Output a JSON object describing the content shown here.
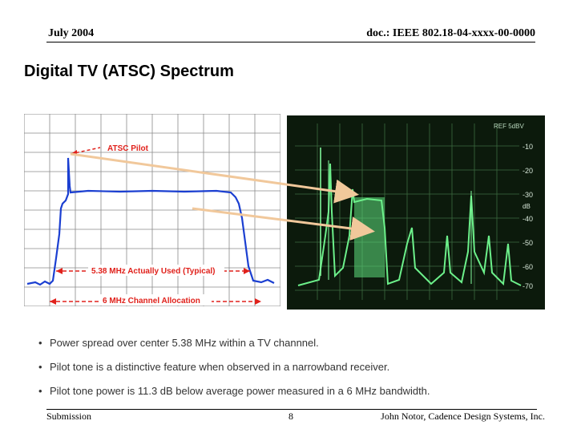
{
  "header": {
    "date": "July 2004",
    "doc_id": "doc.: IEEE 802.18-04-xxxx-00-0000"
  },
  "slide": {
    "title": "Digital TV (ATSC) Spectrum"
  },
  "figure_left": {
    "labels": {
      "pilot": "ATSC Pilot",
      "used": "5.38 MHz Actually Used (Typical)",
      "allocation": "6 MHz Channel Allocation"
    },
    "colors": {
      "trace": "#1b3fd1",
      "annotation": "#e0211b",
      "grid": "#8a8a8a"
    }
  },
  "figure_right": {
    "scale_top": "REF 5dBV",
    "scale_labels": [
      "-10",
      "-20",
      "-30",
      "dB",
      "-40",
      "-50",
      "-60",
      "-70"
    ],
    "colors": {
      "screen": "#0c1a0c",
      "trace": "#6cf08a",
      "grid": "#3c6b40",
      "arrow": "#f1c89b"
    }
  },
  "bullets": [
    "Power spread over center 5.38 MHz within a TV channnel.",
    "Pilot tone is a distinctive feature when observed in a narrowband receiver.",
    "Pilot tone power is 11.3 dB below average power measured in a 6 MHz bandwidth."
  ],
  "footer": {
    "left": "Submission",
    "page": "8",
    "author": "John Notor, Cadence Design Systems, Inc."
  }
}
